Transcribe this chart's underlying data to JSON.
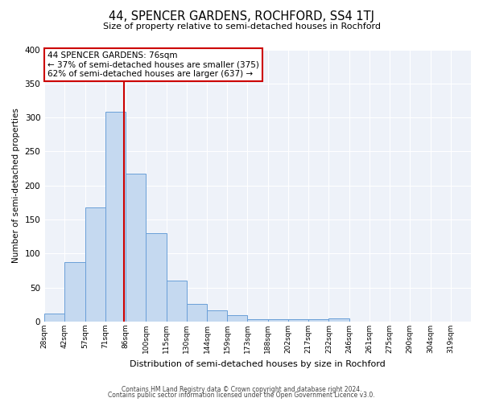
{
  "title": "44, SPENCER GARDENS, ROCHFORD, SS4 1TJ",
  "subtitle": "Size of property relative to semi-detached houses in Rochford",
  "xlabel": "Distribution of semi-detached houses by size in Rochford",
  "ylabel": "Number of semi-detached properties",
  "bar_values": [
    12,
    88,
    168,
    308,
    217,
    130,
    60,
    26,
    16,
    10,
    3,
    4,
    3,
    3,
    5,
    0,
    0,
    0,
    0,
    0,
    0
  ],
  "bin_labels": [
    "28sqm",
    "42sqm",
    "57sqm",
    "71sqm",
    "86sqm",
    "100sqm",
    "115sqm",
    "130sqm",
    "144sqm",
    "159sqm",
    "173sqm",
    "188sqm",
    "202sqm",
    "217sqm",
    "232sqm",
    "246sqm",
    "261sqm",
    "275sqm",
    "290sqm",
    "304sqm",
    "319sqm"
  ],
  "bar_color": "#c5d9f0",
  "bar_edge_color": "#6a9fd8",
  "vline_x": 76,
  "vline_color": "#cc0000",
  "annotation_title": "44 SPENCER GARDENS: 76sqm",
  "annotation_line1": "← 37% of semi-detached houses are smaller (375)",
  "annotation_line2": "62% of semi-detached houses are larger (637) →",
  "annotation_box_color": "#cc0000",
  "ylim": [
    0,
    400
  ],
  "yticks": [
    0,
    50,
    100,
    150,
    200,
    250,
    300,
    350,
    400
  ],
  "footer1": "Contains HM Land Registry data © Crown copyright and database right 2024.",
  "footer2": "Contains public sector information licensed under the Open Government Licence v3.0.",
  "bg_color": "#eef2f9",
  "fig_bg_color": "#ffffff",
  "bin_width": 14
}
